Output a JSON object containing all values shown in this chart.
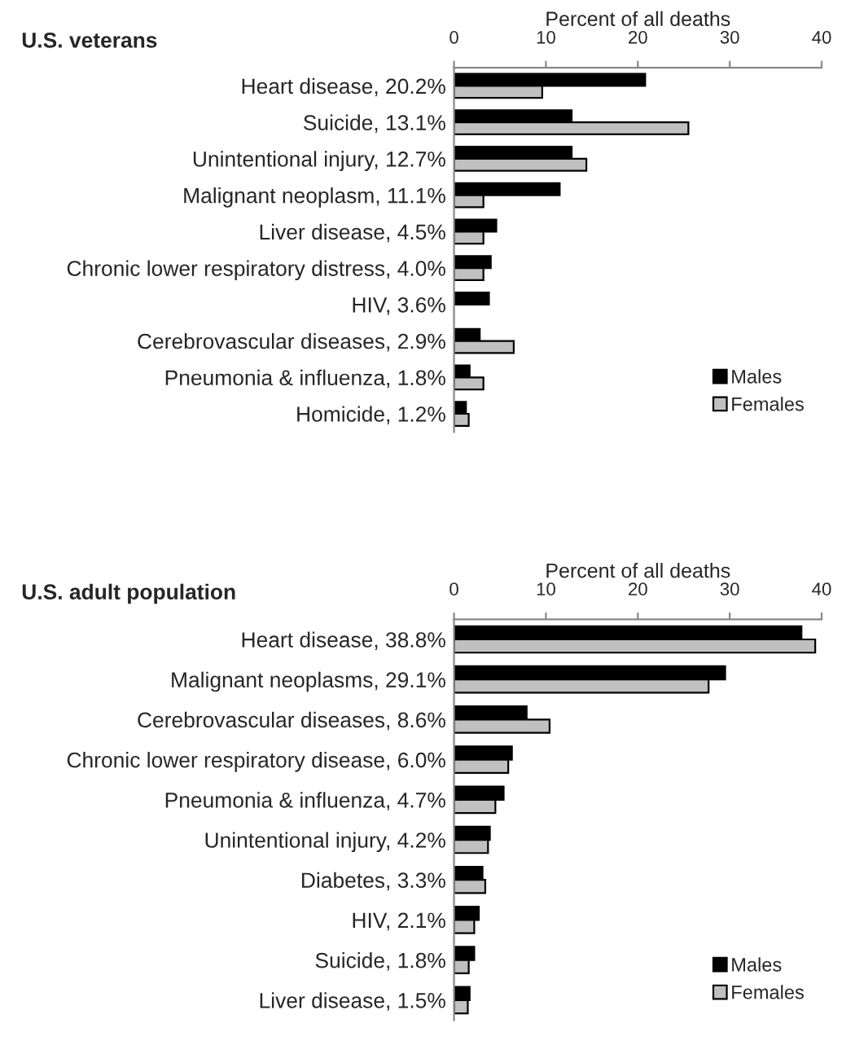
{
  "chart_data": [
    {
      "type": "bar",
      "orientation": "horizontal",
      "title": "U.S. veterans",
      "xlabel": "Percent of all deaths",
      "categories": [
        "Heart disease, 20.2%",
        "Suicide, 13.1%",
        "Unintentional injury, 12.7%",
        "Malignant neoplasm, 11.1%",
        "Liver disease, 4.5%",
        "Chronic lower respiratory distress, 4.0%",
        "HIV, 3.6%",
        "Cerebrovascular diseases, 2.9%",
        "Pneumonia & influenza, 1.8%",
        "Homicide, 1.2%"
      ],
      "series": [
        {
          "name": "Males",
          "color": "#000000",
          "values": [
            20.8,
            12.8,
            12.8,
            11.5,
            4.6,
            4.0,
            3.8,
            2.8,
            1.7,
            1.3
          ]
        },
        {
          "name": "Females",
          "color": "#c0c0c0",
          "values": [
            9.6,
            25.5,
            14.4,
            3.2,
            3.2,
            3.2,
            null,
            6.5,
            3.2,
            1.6
          ]
        }
      ],
      "xlim": [
        0,
        40
      ],
      "xticks": [
        0,
        10,
        20,
        30,
        40
      ],
      "grid": false,
      "legend": "bottom right"
    },
    {
      "type": "bar",
      "orientation": "horizontal",
      "title": "U.S. adult population",
      "xlabel": "Percent of all deaths",
      "categories": [
        "Heart disease, 38.8%",
        "Malignant neoplasms, 29.1%",
        "Cerebrovascular diseases, 8.6%",
        "Chronic lower respiratory disease, 6.0%",
        "Pneumonia & influenza, 4.7%",
        "Unintentional injury, 4.2%",
        "Diabetes, 3.3%",
        "HIV, 2.1%",
        "Suicide, 1.8%",
        "Liver disease, 1.5%"
      ],
      "series": [
        {
          "name": "Males",
          "color": "#000000",
          "values": [
            37.8,
            29.5,
            7.9,
            6.3,
            5.4,
            3.9,
            3.1,
            2.7,
            2.2,
            1.7
          ]
        },
        {
          "name": "Females",
          "color": "#c0c0c0",
          "values": [
            39.3,
            27.7,
            10.4,
            5.9,
            4.5,
            3.7,
            3.4,
            2.2,
            1.6,
            1.5
          ]
        }
      ],
      "xlim": [
        0,
        40
      ],
      "xticks": [
        0,
        10,
        20,
        30,
        40
      ],
      "grid": false,
      "legend": "bottom right"
    }
  ]
}
